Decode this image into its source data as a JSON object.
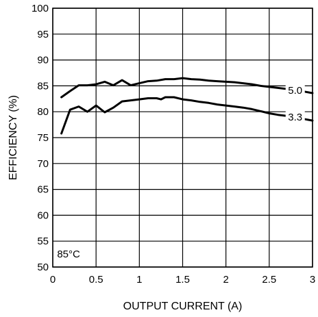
{
  "chart_data": {
    "type": "line",
    "xlabel": "OUTPUT CURRENT (A)",
    "ylabel": "EFFICIENCY (%)",
    "xlim": [
      0,
      3
    ],
    "ylim": [
      50,
      100
    ],
    "x_ticks": [
      0,
      0.5,
      1,
      1.5,
      2,
      2.5,
      3
    ],
    "x_tick_labels": [
      "0",
      "0.5",
      "1",
      "1.5",
      "2",
      "2.5",
      "3"
    ],
    "y_ticks": [
      50,
      55,
      60,
      65,
      70,
      75,
      80,
      85,
      90,
      95,
      100
    ],
    "y_tick_labels": [
      "50",
      "55",
      "60",
      "65",
      "70",
      "75",
      "80",
      "85",
      "90",
      "95",
      "100"
    ],
    "grid": true,
    "annotation": "85°C",
    "series": [
      {
        "name": "5.0",
        "x": [
          0.1,
          0.2,
          0.3,
          0.4,
          0.5,
          0.6,
          0.7,
          0.8,
          0.9,
          1.0,
          1.1,
          1.2,
          1.3,
          1.4,
          1.5,
          1.6,
          1.7,
          1.8,
          1.9,
          2.0,
          2.1,
          2.2,
          2.3,
          2.4,
          2.5,
          2.6,
          2.7,
          2.8,
          2.9,
          3.0
        ],
        "y": [
          82.8,
          84.0,
          85.1,
          85.1,
          85.3,
          85.8,
          85.1,
          86.1,
          85.1,
          85.5,
          85.9,
          86.0,
          86.3,
          86.3,
          86.5,
          86.3,
          86.2,
          86.0,
          85.9,
          85.8,
          85.7,
          85.5,
          85.3,
          85.0,
          84.8,
          84.6,
          84.4,
          84.1,
          83.9,
          83.6
        ]
      },
      {
        "name": "3.3",
        "x": [
          0.1,
          0.2,
          0.3,
          0.4,
          0.5,
          0.6,
          0.7,
          0.8,
          0.9,
          1.0,
          1.1,
          1.2,
          1.25,
          1.3,
          1.4,
          1.5,
          1.6,
          1.7,
          1.8,
          1.9,
          2.0,
          2.1,
          2.2,
          2.3,
          2.4,
          2.5,
          2.6,
          2.7,
          2.8,
          2.9,
          3.0
        ],
        "y": [
          75.8,
          80.4,
          81.0,
          80.0,
          81.2,
          79.9,
          80.8,
          82.0,
          82.2,
          82.4,
          82.6,
          82.6,
          82.4,
          82.8,
          82.8,
          82.4,
          82.2,
          81.9,
          81.7,
          81.4,
          81.2,
          81.0,
          80.8,
          80.5,
          80.1,
          79.7,
          79.4,
          79.2,
          79.0,
          78.6,
          78.3
        ]
      }
    ]
  }
}
